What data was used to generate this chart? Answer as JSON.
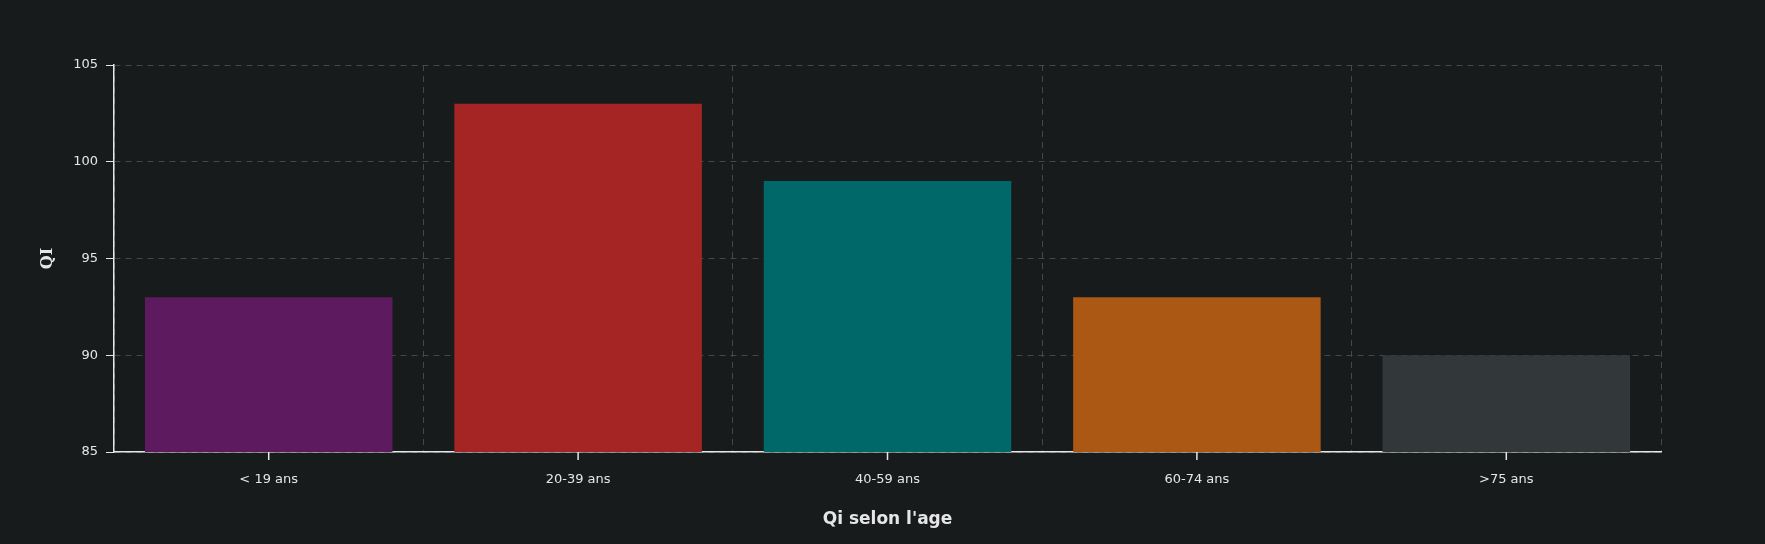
{
  "chart_data": {
    "type": "bar",
    "xlabel": "Qi selon l'age",
    "ylabel": "QI",
    "categories": [
      "< 19 ans",
      "20-39 ans",
      "40-59 ans",
      "60-74 ans",
      ">75 ans"
    ],
    "values": [
      93,
      103,
      99,
      93,
      90
    ],
    "colors": [
      "#5e1a5e",
      "#a52424",
      "#006868",
      "#ab5814",
      "#32373a"
    ],
    "ylim": [
      85,
      105
    ],
    "yticks": [
      85,
      90,
      95,
      100,
      105
    ],
    "grid": true
  }
}
